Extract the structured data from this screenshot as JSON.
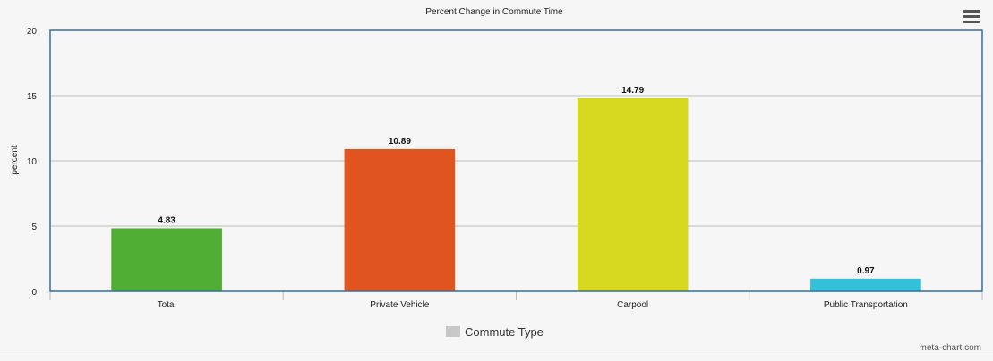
{
  "chart_data": {
    "type": "bar",
    "title": "Percent Change in Commute Time",
    "xlabel": "",
    "ylabel": "percent",
    "categories": [
      "Total",
      "Private Vehicle",
      "Carpool",
      "Public Transportation"
    ],
    "series": [
      {
        "name": "Commute Type",
        "values": [
          4.83,
          10.89,
          14.79,
          0.97
        ],
        "colors": [
          "#4fae33",
          "#e05420",
          "#d7d820",
          "#33c0d8"
        ]
      }
    ],
    "ylim": [
      0,
      20
    ],
    "yticks": [
      0,
      5,
      10,
      15,
      20
    ],
    "grid": true,
    "legend": "bottom-center",
    "data_labels": [
      "4.83",
      "10.89",
      "14.79",
      "0.97"
    ]
  },
  "legend": {
    "label": "Commute Type",
    "swatch_color": "#c8c8c8"
  },
  "credit": "meta-chart.com",
  "menu": {
    "icon": "hamburger-menu-icon"
  }
}
